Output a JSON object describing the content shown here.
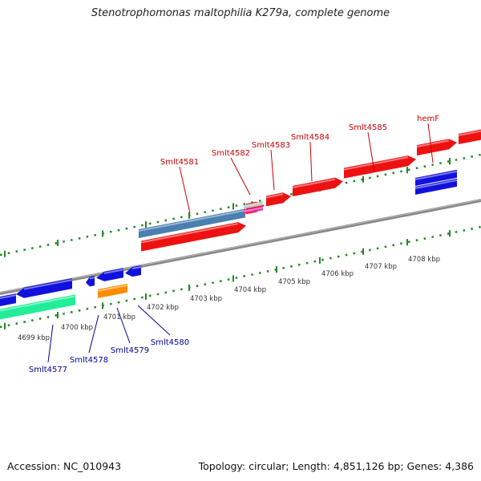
{
  "title": "Stenotrophomonas maltophilia K279a, complete genome",
  "footer": {
    "accession": "Accession: NC_010943",
    "topology": "Topology: circular; Length: 4,851,126 bp; Genes: 4,386"
  },
  "colors": {
    "forward_label": "#cc0000",
    "reverse_label": "#000099",
    "tick": "#228822",
    "backbone": "#888888",
    "red_gene": "#ee1111",
    "blue_gene": "#1111dd",
    "teal_gene": "#22ee99",
    "orange_gene": "#ff8c00",
    "steel_gene": "#4a7fb0",
    "pink_gene": "#ee2299",
    "grey_gene": "#bbbbbb"
  },
  "scale": {
    "ticks": [
      "4699 kbp",
      "4700 kbp",
      "4701 kbp",
      "4702 kbp",
      "4703 kbp",
      "4704 kbp",
      "4705 kbp",
      "4706 kbp",
      "4707 kbp",
      "4708 kbp"
    ]
  },
  "forward_labels": [
    "Smlt4581",
    "Smlt4582",
    "Smlt4583",
    "Smlt4584",
    "Smlt4585",
    "hemF"
  ],
  "reverse_labels": [
    "Smlt4577",
    "Smlt4578",
    "Smlt4579",
    "Smlt4580"
  ]
}
